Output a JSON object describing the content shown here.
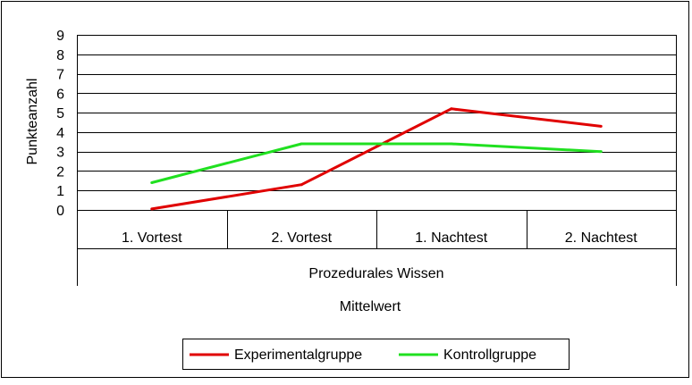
{
  "chart_data": {
    "type": "line",
    "title": "",
    "ylabel": "Punkteanzahl",
    "xlabel_levels": [
      "Prozedurales Wissen",
      "Mittelwert"
    ],
    "categories": [
      "1. Vortest",
      "2. Vortest",
      "1. Nachtest",
      "2. Nachtest"
    ],
    "ylim": [
      0,
      9
    ],
    "yticks": [
      "0",
      "1",
      "2",
      "3",
      "4",
      "5",
      "6",
      "7",
      "8",
      "9"
    ],
    "grid": true,
    "legend_position": "bottom",
    "series": [
      {
        "name": "Experimentalgruppe",
        "color": "#e00000",
        "values": [
          0.05,
          1.3,
          5.2,
          4.3
        ]
      },
      {
        "name": "Kontrollgruppe",
        "color": "#20e020",
        "values": [
          1.4,
          3.4,
          3.4,
          3.0
        ]
      }
    ]
  }
}
